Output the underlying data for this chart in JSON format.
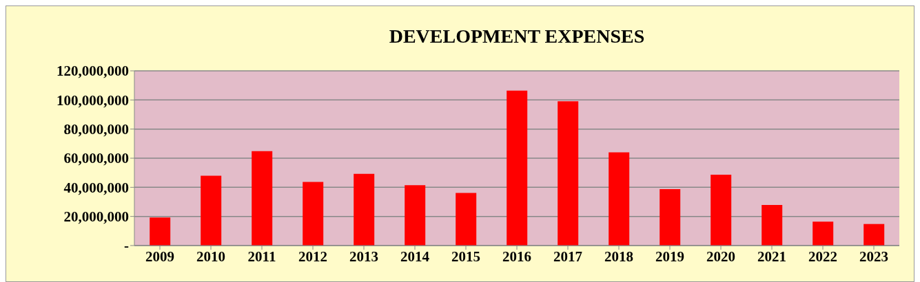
{
  "chart_data": {
    "type": "bar",
    "title": "DEVELOPMENT EXPENSES",
    "categories": [
      "2009",
      "2010",
      "2011",
      "2012",
      "2013",
      "2014",
      "2015",
      "2016",
      "2017",
      "2018",
      "2019",
      "2020",
      "2021",
      "2022",
      "2023"
    ],
    "values": [
      19300000,
      48000000,
      64900000,
      43700000,
      49300000,
      41400000,
      36100000,
      106400000,
      99100000,
      64000000,
      38700000,
      48700000,
      27900000,
      16400000,
      14800000
    ],
    "color": "#ff0000",
    "ylim": [
      0,
      120000000
    ],
    "yticks": [
      {
        "value": 0,
        "label": "-"
      },
      {
        "value": 20000000,
        "label": "20,000,000"
      },
      {
        "value": 40000000,
        "label": "40,000,000"
      },
      {
        "value": 60000000,
        "label": "60,000,000"
      },
      {
        "value": 80000000,
        "label": "80,000,000"
      },
      {
        "value": 100000000,
        "label": "100,000,000"
      },
      {
        "value": 120000000,
        "label": "120,000,000"
      }
    ],
    "grid": "y",
    "legend": false
  }
}
